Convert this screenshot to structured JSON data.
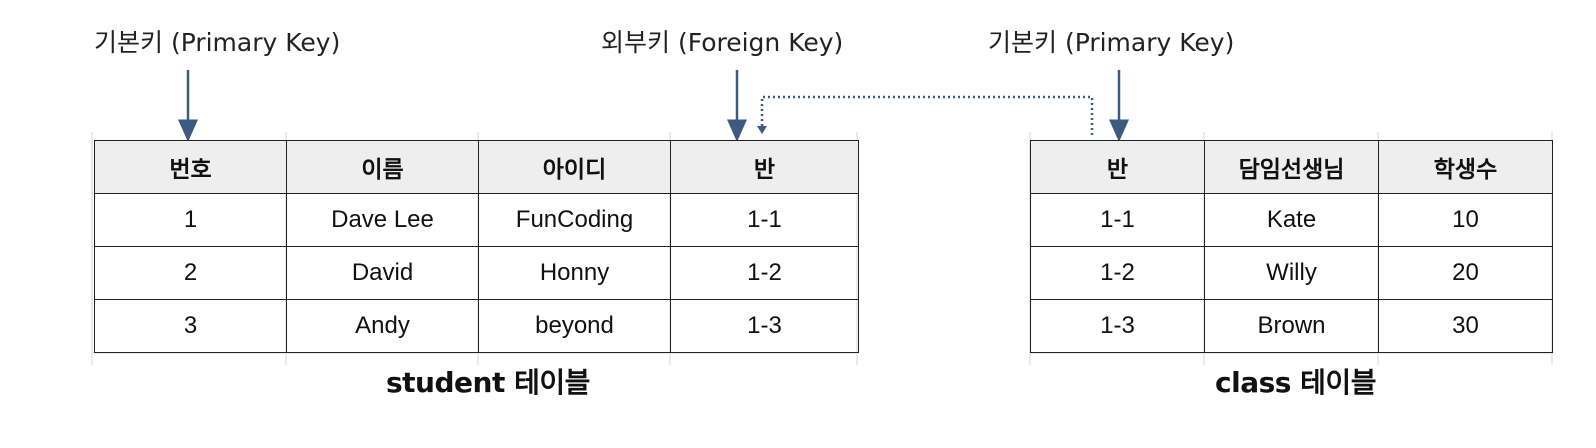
{
  "annotations": {
    "student_pk": "기본키 (Primary Key)",
    "student_fk": "외부키 (Foreign Key)",
    "class_pk": "기본키 (Primary Key)"
  },
  "student_table": {
    "caption": "student 테이블",
    "headers": [
      "번호",
      "이름",
      "아이디",
      "반"
    ],
    "rows": [
      [
        "1",
        "Dave Lee",
        "FunCoding",
        "1-1"
      ],
      [
        "2",
        "David",
        "Honny",
        "1-2"
      ],
      [
        "3",
        "Andy",
        "beyond",
        "1-3"
      ]
    ]
  },
  "class_table": {
    "caption": "class 테이블",
    "headers": [
      "반",
      "담임선생님",
      "학생수"
    ],
    "rows": [
      [
        "1-1",
        "Kate",
        "10"
      ],
      [
        "1-2",
        "Willy",
        "20"
      ],
      [
        "1-3",
        "Brown",
        "30"
      ]
    ]
  },
  "colors": {
    "arrow": "#3d5a80",
    "header_bg": "#eeeeee",
    "grid": "#e3e3e3"
  }
}
